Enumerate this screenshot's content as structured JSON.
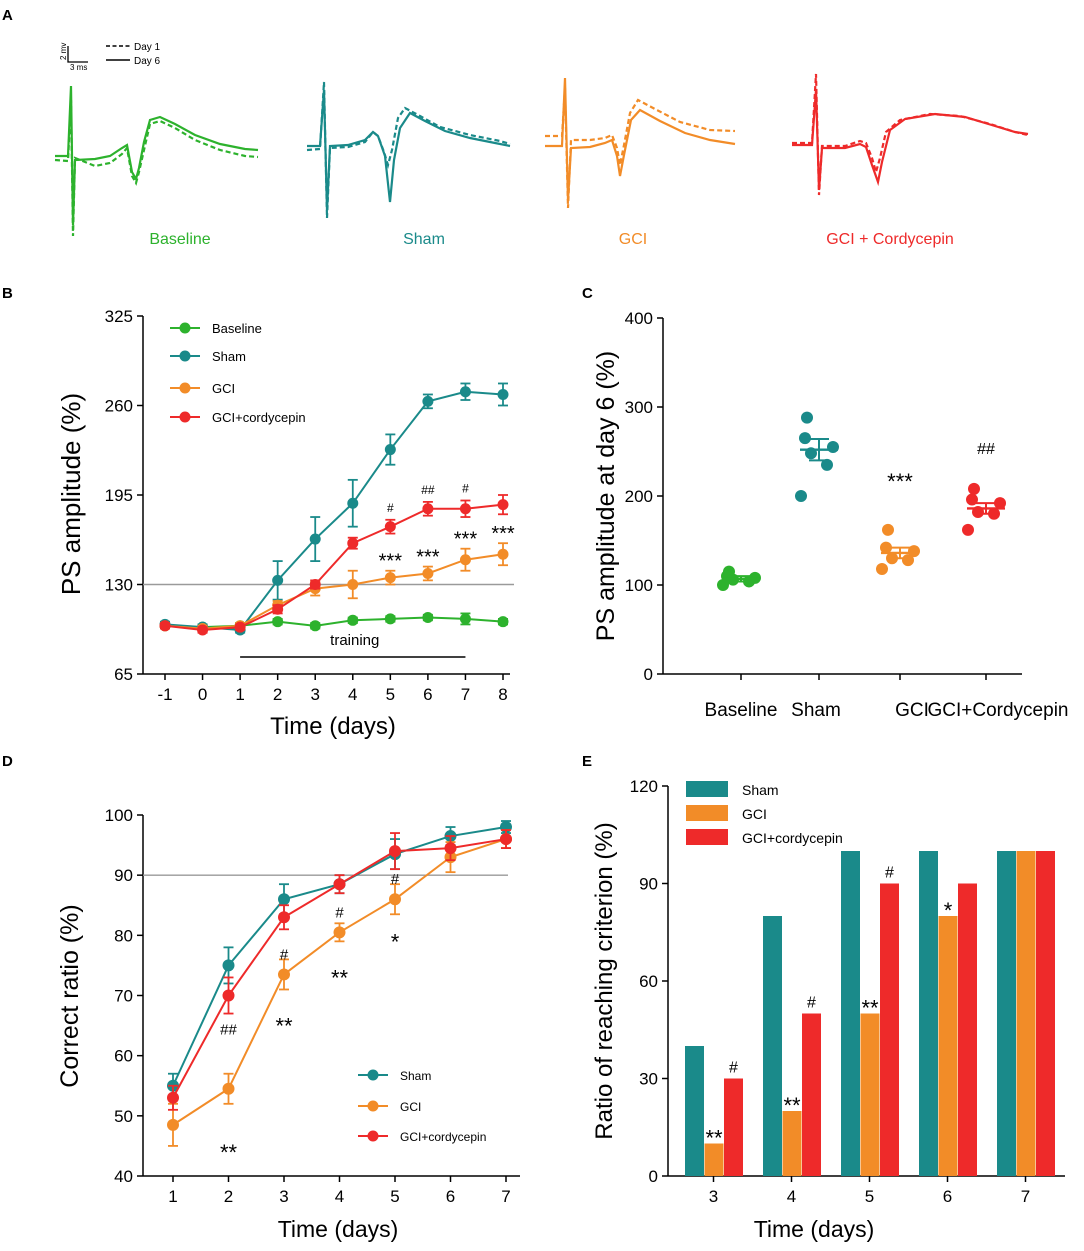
{
  "figure": {
    "colors": {
      "baseline": "#2DB22D",
      "sham": "#1A8A8A",
      "gci": "#F28C28",
      "cordycepin": "#EE2A2A",
      "axis": "#000000",
      "refline": "#9a9a9a"
    }
  },
  "panelA": {
    "letter": "A",
    "scale_v": "2 mv",
    "scale_h": "3 ms",
    "legend_day1": "Day 1",
    "legend_day6": "Day 6",
    "labels": [
      "Baseline",
      "Sham",
      "GCI",
      "GCI + Cordycepin"
    ]
  },
  "chart_data": [
    {
      "id": "B",
      "type": "line",
      "letter": "B",
      "title": "",
      "xlabel": "Time (days)",
      "ylabel": "PS amplitude (%)",
      "x": [
        -1,
        0,
        1,
        2,
        3,
        4,
        5,
        6,
        7,
        8
      ],
      "xticks": [
        "-1",
        "0",
        "1",
        "2",
        "3",
        "4",
        "5",
        "6",
        "7",
        "8"
      ],
      "ylim": [
        65,
        325
      ],
      "yticks": [
        65,
        130,
        195,
        260,
        325
      ],
      "reference_line": 130,
      "training": {
        "label": "training",
        "from": 1,
        "to": 7
      },
      "series": [
        {
          "name": "Baseline",
          "color_key": "baseline",
          "x": [
            -1,
            0,
            1,
            2,
            3,
            4,
            5,
            6,
            7,
            8
          ],
          "values": [
            100,
            99,
            100,
            103,
            100,
            104,
            105,
            106,
            105,
            103
          ],
          "err": [
            2,
            2,
            2,
            2,
            2,
            2,
            2,
            2,
            4,
            2
          ]
        },
        {
          "name": "Sham",
          "color_key": "sham",
          "x": [
            -1,
            0,
            1,
            2,
            3,
            4,
            5,
            6,
            7,
            8
          ],
          "values": [
            101,
            99,
            97,
            133,
            163,
            189,
            228,
            263,
            270,
            268
          ],
          "err": [
            2,
            2,
            2,
            14,
            16,
            17,
            11,
            5,
            6,
            8
          ]
        },
        {
          "name": "GCI",
          "color_key": "gci",
          "x": [
            -1,
            0,
            1,
            2,
            3,
            4,
            5,
            6,
            7,
            8
          ],
          "values": [
            100,
            98,
            100,
            115,
            127,
            130,
            135,
            138,
            148,
            152
          ],
          "err": [
            2,
            2,
            2,
            3,
            5,
            10,
            5,
            5,
            8,
            8
          ]
        },
        {
          "name": "GCI+cordycepin",
          "color_key": "cordycepin",
          "x": [
            -1,
            0,
            1,
            2,
            3,
            4,
            5,
            6,
            7,
            8
          ],
          "values": [
            100,
            97,
            99,
            112,
            130,
            160,
            172,
            185,
            185,
            188
          ],
          "err": [
            2,
            2,
            2,
            3,
            3,
            4,
            5,
            5,
            6,
            7
          ]
        }
      ],
      "annotations": [
        {
          "text": "***",
          "x": 5,
          "series": "GCI"
        },
        {
          "text": "***",
          "x": 6,
          "series": "GCI"
        },
        {
          "text": "***",
          "x": 7,
          "series": "GCI"
        },
        {
          "text": "***",
          "x": 8,
          "series": "GCI"
        },
        {
          "text": "#",
          "x": 5,
          "series": "GCI+cordycepin"
        },
        {
          "text": "##",
          "x": 6,
          "series": "GCI+cordycepin"
        },
        {
          "text": "#",
          "x": 7,
          "series": "GCI+cordycepin"
        }
      ]
    },
    {
      "id": "C",
      "type": "scatter",
      "letter": "C",
      "title": "",
      "xlabel": "",
      "ylabel": "PS amplitude at day 6 (%)",
      "categories": [
        "Baseline",
        "Sham",
        "GCI",
        "GCI+Cordycepin"
      ],
      "ylim": [
        0,
        400
      ],
      "yticks": [
        0,
        100,
        200,
        300,
        400
      ],
      "groups": [
        {
          "name": "Baseline",
          "color_key": "baseline",
          "points": [
            115,
            110,
            108,
            106,
            104,
            100
          ],
          "mean": 107,
          "sem": 3
        },
        {
          "name": "Sham",
          "color_key": "sham",
          "points": [
            288,
            265,
            255,
            248,
            235,
            200
          ],
          "mean": 252,
          "sem": 12
        },
        {
          "name": "GCI",
          "color_key": "gci",
          "points": [
            162,
            142,
            138,
            130,
            128,
            118
          ],
          "mean": 136,
          "sem": 6
        },
        {
          "name": "GCI+Cordycepin",
          "color_key": "cordycepin",
          "points": [
            208,
            196,
            192,
            182,
            180,
            162
          ],
          "mean": 186,
          "sem": 6
        }
      ],
      "annotations": [
        {
          "text": "***",
          "category": "GCI",
          "y": 208
        },
        {
          "text": "##",
          "category": "GCI+Cordycepin",
          "y": 247
        }
      ]
    },
    {
      "id": "D",
      "type": "line",
      "letter": "D",
      "title": "",
      "xlabel": "Time (days)",
      "ylabel": "Correct ratio (%)",
      "x": [
        1,
        2,
        3,
        4,
        5,
        6,
        7
      ],
      "xticks": [
        "1",
        "2",
        "3",
        "4",
        "5",
        "6",
        "7"
      ],
      "ylim": [
        40,
        100
      ],
      "yticks": [
        40,
        50,
        60,
        70,
        80,
        90,
        100
      ],
      "reference_line": 90,
      "series": [
        {
          "name": "Sham",
          "color_key": "sham",
          "values": [
            55,
            75,
            86,
            88.5,
            93.5,
            96.5,
            98
          ],
          "err": [
            2,
            3,
            2.5,
            1.5,
            2.5,
            1.5,
            1
          ]
        },
        {
          "name": "GCI",
          "color_key": "gci",
          "values": [
            48.5,
            54.5,
            73.5,
            80.5,
            86,
            93,
            96
          ],
          "err": [
            3.5,
            2.5,
            2.5,
            1.5,
            2.5,
            2.5,
            1.5
          ]
        },
        {
          "name": "GCI+cordycepin",
          "color_key": "cordycepin",
          "values": [
            53,
            70,
            83,
            88.5,
            94,
            94.5,
            96
          ],
          "err": [
            2,
            3,
            2,
            1.5,
            3,
            2,
            1.5
          ]
        }
      ],
      "annotations": [
        {
          "text": "**",
          "x": 2,
          "y": 45
        },
        {
          "text": "##",
          "x": 2,
          "y": 64.5
        },
        {
          "text": "**",
          "x": 3,
          "y": 66
        },
        {
          "text": "#",
          "x": 3,
          "y": 77
        },
        {
          "text": "**",
          "x": 4,
          "y": 74
        },
        {
          "text": "#",
          "x": 4,
          "y": 84
        },
        {
          "text": "*",
          "x": 5,
          "y": 80
        },
        {
          "text": "#",
          "x": 5,
          "y": 89.5
        }
      ]
    },
    {
      "id": "E",
      "type": "bar",
      "letter": "E",
      "title": "",
      "xlabel": "Time (days)",
      "ylabel": "Ratio of reaching criterion (%)",
      "categories": [
        "3",
        "4",
        "5",
        "6",
        "7"
      ],
      "ylim": [
        0,
        120
      ],
      "yticks": [
        0,
        30,
        60,
        90,
        120
      ],
      "series": [
        {
          "name": "Sham",
          "color_key": "sham",
          "values": [
            40,
            80,
            100,
            100,
            100
          ]
        },
        {
          "name": "GCI",
          "color_key": "gci",
          "values": [
            10,
            20,
            50,
            80,
            100
          ]
        },
        {
          "name": "GCI+cordycepin",
          "color_key": "cordycepin",
          "values": [
            30,
            50,
            90,
            90,
            100
          ]
        }
      ],
      "annotations": [
        {
          "text": "**",
          "category": "3",
          "series": "GCI"
        },
        {
          "text": "#",
          "category": "3",
          "series": "GCI+cordycepin"
        },
        {
          "text": "**",
          "category": "4",
          "series": "GCI"
        },
        {
          "text": "#",
          "category": "4",
          "series": "GCI+cordycepin"
        },
        {
          "text": "**",
          "category": "5",
          "series": "GCI"
        },
        {
          "text": "#",
          "category": "5",
          "series": "GCI+cordycepin"
        },
        {
          "text": "*",
          "category": "6",
          "series": "GCI"
        }
      ]
    }
  ]
}
